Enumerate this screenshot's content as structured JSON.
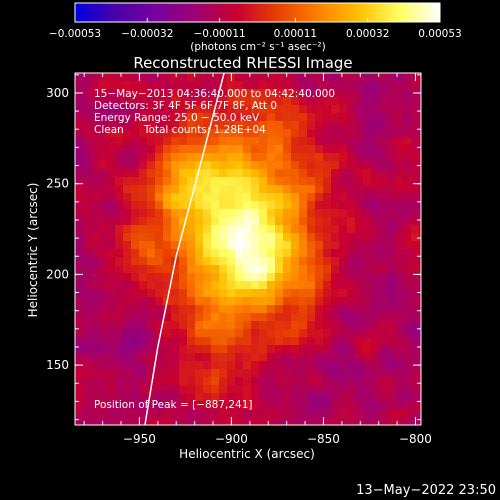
{
  "chart_data": {
    "type": "heatmap",
    "title": "Reconstructed RHESSI Image",
    "xlabel": "Heliocentric X (arcsec)",
    "ylabel": "Heliocentric Y (arcsec)",
    "xlim": [
      -985,
      -797
    ],
    "ylim": [
      117,
      311
    ],
    "x_ticks": [
      -950,
      -900,
      -850,
      -800
    ],
    "x_tick_labels": [
      "−950",
      "−900",
      "−850",
      "−800"
    ],
    "y_ticks": [
      150,
      200,
      250,
      300
    ],
    "y_tick_labels": [
      "150",
      "200",
      "250",
      "300"
    ],
    "colorbar": {
      "range": [
        -0.00053,
        0.00053
      ],
      "tick_values": [
        -0.00053,
        -0.00032,
        -0.00011,
        0.00011,
        0.00032,
        0.00053
      ],
      "tick_labels": [
        "−0.00053",
        "−0.00032",
        "−0.00011",
        "0.00011",
        "0.00032",
        "0.00053"
      ],
      "units_label": "(photons cm⁻² s⁻¹ asec⁻²)",
      "colors": [
        "#0000e0",
        "#4a00a8",
        "#7800a0",
        "#a00070",
        "#c80030",
        "#e84000",
        "#ff8000",
        "#ffc000",
        "#ffff60",
        "#ffffff"
      ]
    },
    "annotations": {
      "time_range": "15−May−2013 04:36:40.000 to 04:42:40.000",
      "detectors": "Detectors: 3F 4F 5F 6F 7F 8F, Att 0",
      "energy_range": "Energy Range: 25.0 − 50.0 keV",
      "method_counts": "Clean      Total counts: 1.28E+04",
      "peak": "Position of Peak = [−887,241]"
    },
    "limb_curve": [
      [
        -947,
        117
      ],
      [
        -940,
        160
      ],
      [
        -930,
        210
      ],
      [
        -917,
        260
      ],
      [
        -904,
        311
      ]
    ],
    "peak_position": [
      -887,
      241
    ],
    "emission_sources": [
      {
        "x": -895,
        "y": 235,
        "sx": 25,
        "sy": 33,
        "amp": 0.00048
      },
      {
        "x": -928,
        "y": 252,
        "sx": 14,
        "sy": 16,
        "amp": 0.00024
      },
      {
        "x": -887,
        "y": 205,
        "sx": 18,
        "sy": 18,
        "amp": 0.0002
      },
      {
        "x": -905,
        "y": 175,
        "sx": 16,
        "sy": 30,
        "amp": 0.0002
      },
      {
        "x": -948,
        "y": 215,
        "sx": 12,
        "sy": 14,
        "amp": 0.00014
      },
      {
        "x": -875,
        "y": 285,
        "sx": 12,
        "sy": 12,
        "amp": 0.00012
      },
      {
        "x": -860,
        "y": 200,
        "sx": 10,
        "sy": 22,
        "amp": 0.00012
      }
    ]
  },
  "footer": {
    "timestamp": "13−May−2022 23:50"
  }
}
